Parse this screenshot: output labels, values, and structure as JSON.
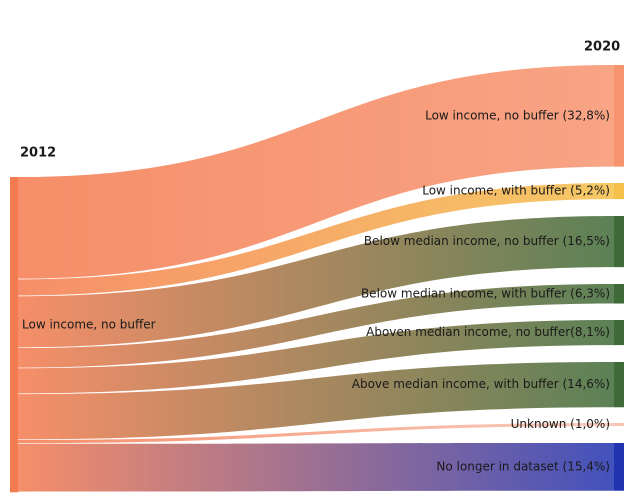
{
  "chart_data": {
    "type": "sankey",
    "source_year": "2012",
    "target_year": "2020",
    "source": {
      "label": "Low income, no buffer",
      "color": "#f47b4f"
    },
    "nodes": [
      {
        "label": "Low income, no buffer (32,8%)",
        "value": 32.8,
        "color": "#f79470"
      },
      {
        "label": "Low income, with buffer (5,2%)",
        "value": 5.2,
        "color": "#f5c04a"
      },
      {
        "label": "Below median income, no buffer (16,5%)",
        "value": 16.5,
        "color": "#3f6b38"
      },
      {
        "label": "Below median income, with buffer (6,3%)",
        "value": 6.3,
        "color": "#3f6b38"
      },
      {
        "label": "Aboven median income, no buffer(8,1%)",
        "value": 8.1,
        "color": "#3f6b38"
      },
      {
        "label": "Above median income, with buffer (14,6%)",
        "value": 14.6,
        "color": "#3f6b38"
      },
      {
        "label": "Unknown (1,0%)",
        "value": 1.0,
        "color": "#f7c3b3"
      },
      {
        "label": "No longer in dataset (15,4%)",
        "value": 15.4,
        "color": "#2233b0"
      }
    ]
  }
}
